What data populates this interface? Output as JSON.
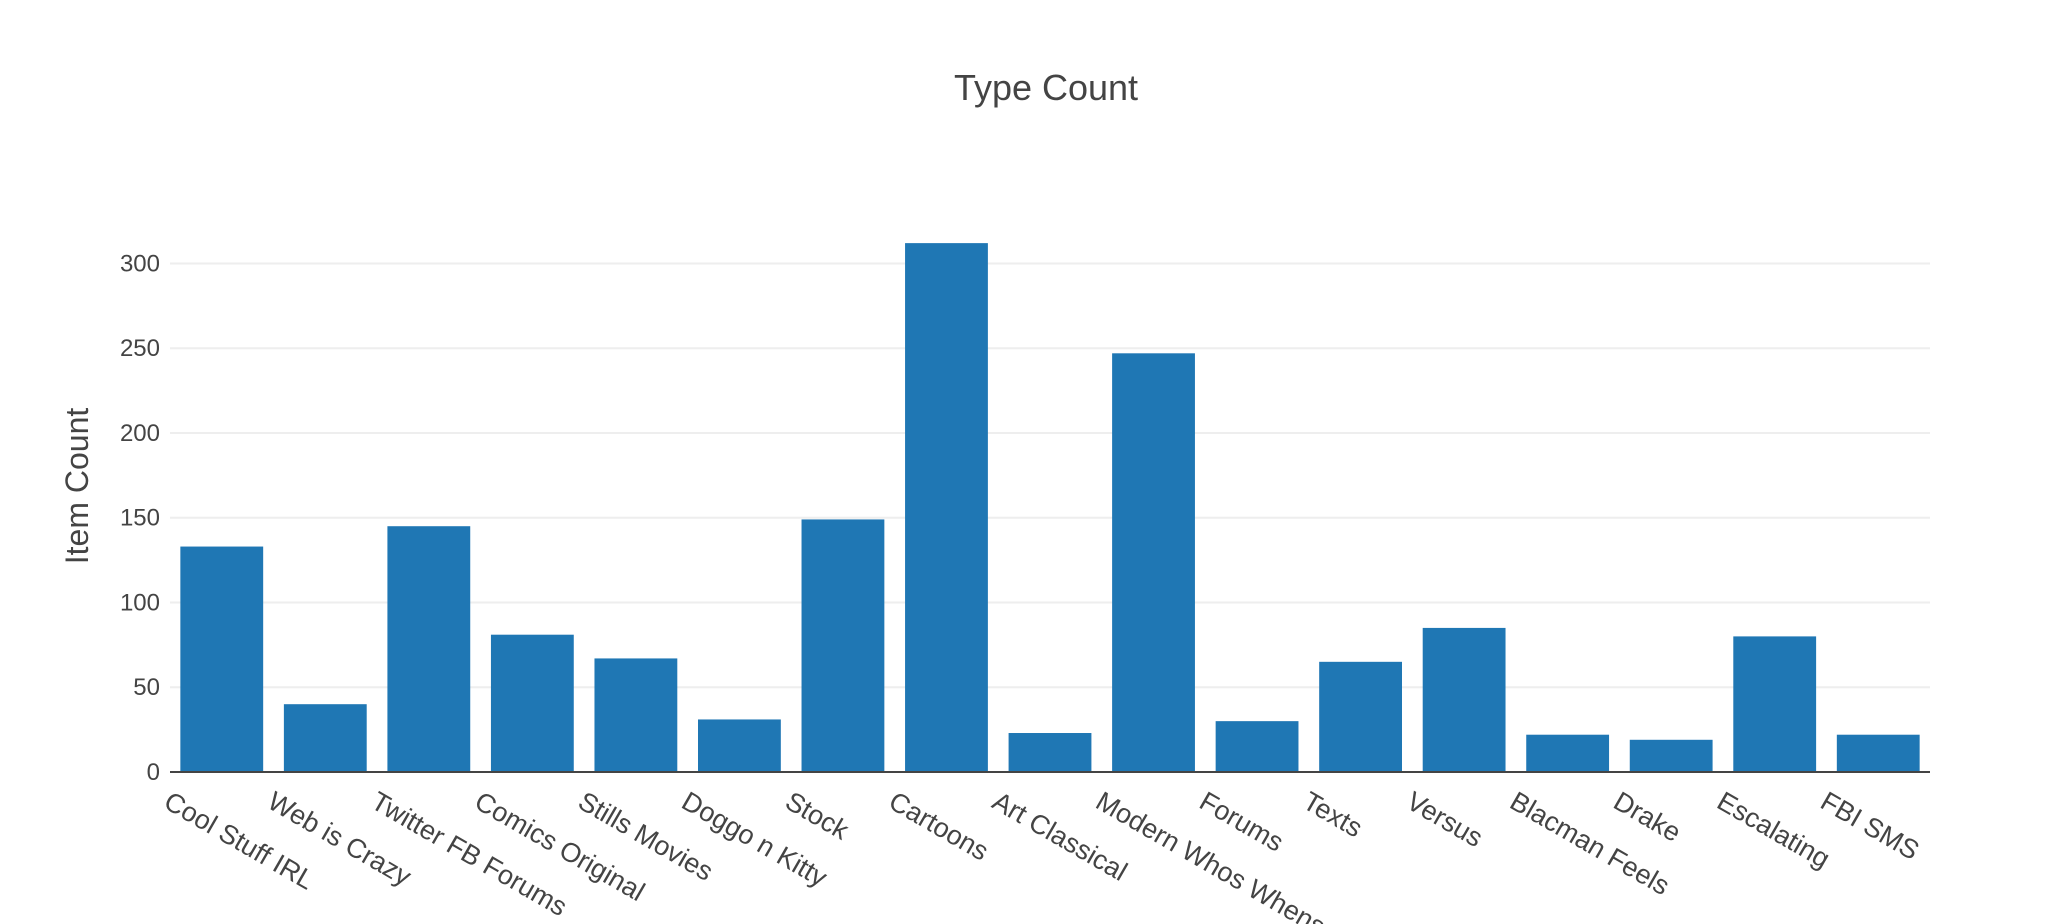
{
  "chart_data": {
    "type": "bar",
    "title": "Type Count",
    "xlabel": "",
    "ylabel": "Item Count",
    "categories": [
      "Cool Stuff IRL",
      "Web is Crazy",
      "Twitter FB Forums",
      "Comics Original",
      "Stills Movies",
      "Doggo n Kitty",
      "Stock",
      "Cartoons",
      "Art Classical",
      "Modern Whos Whens",
      "Forums",
      "Texts",
      "Versus",
      "Blacman Feels",
      "Drake",
      "Escalating",
      "FBI SMS"
    ],
    "values": [
      133,
      40,
      145,
      81,
      67,
      31,
      149,
      312,
      23,
      247,
      30,
      65,
      85,
      22,
      19,
      80,
      22
    ],
    "ylim": [
      0,
      328
    ],
    "yticks": [
      0,
      50,
      100,
      150,
      200,
      250,
      300
    ],
    "grid": true,
    "bar_color": "#1f77b4"
  }
}
